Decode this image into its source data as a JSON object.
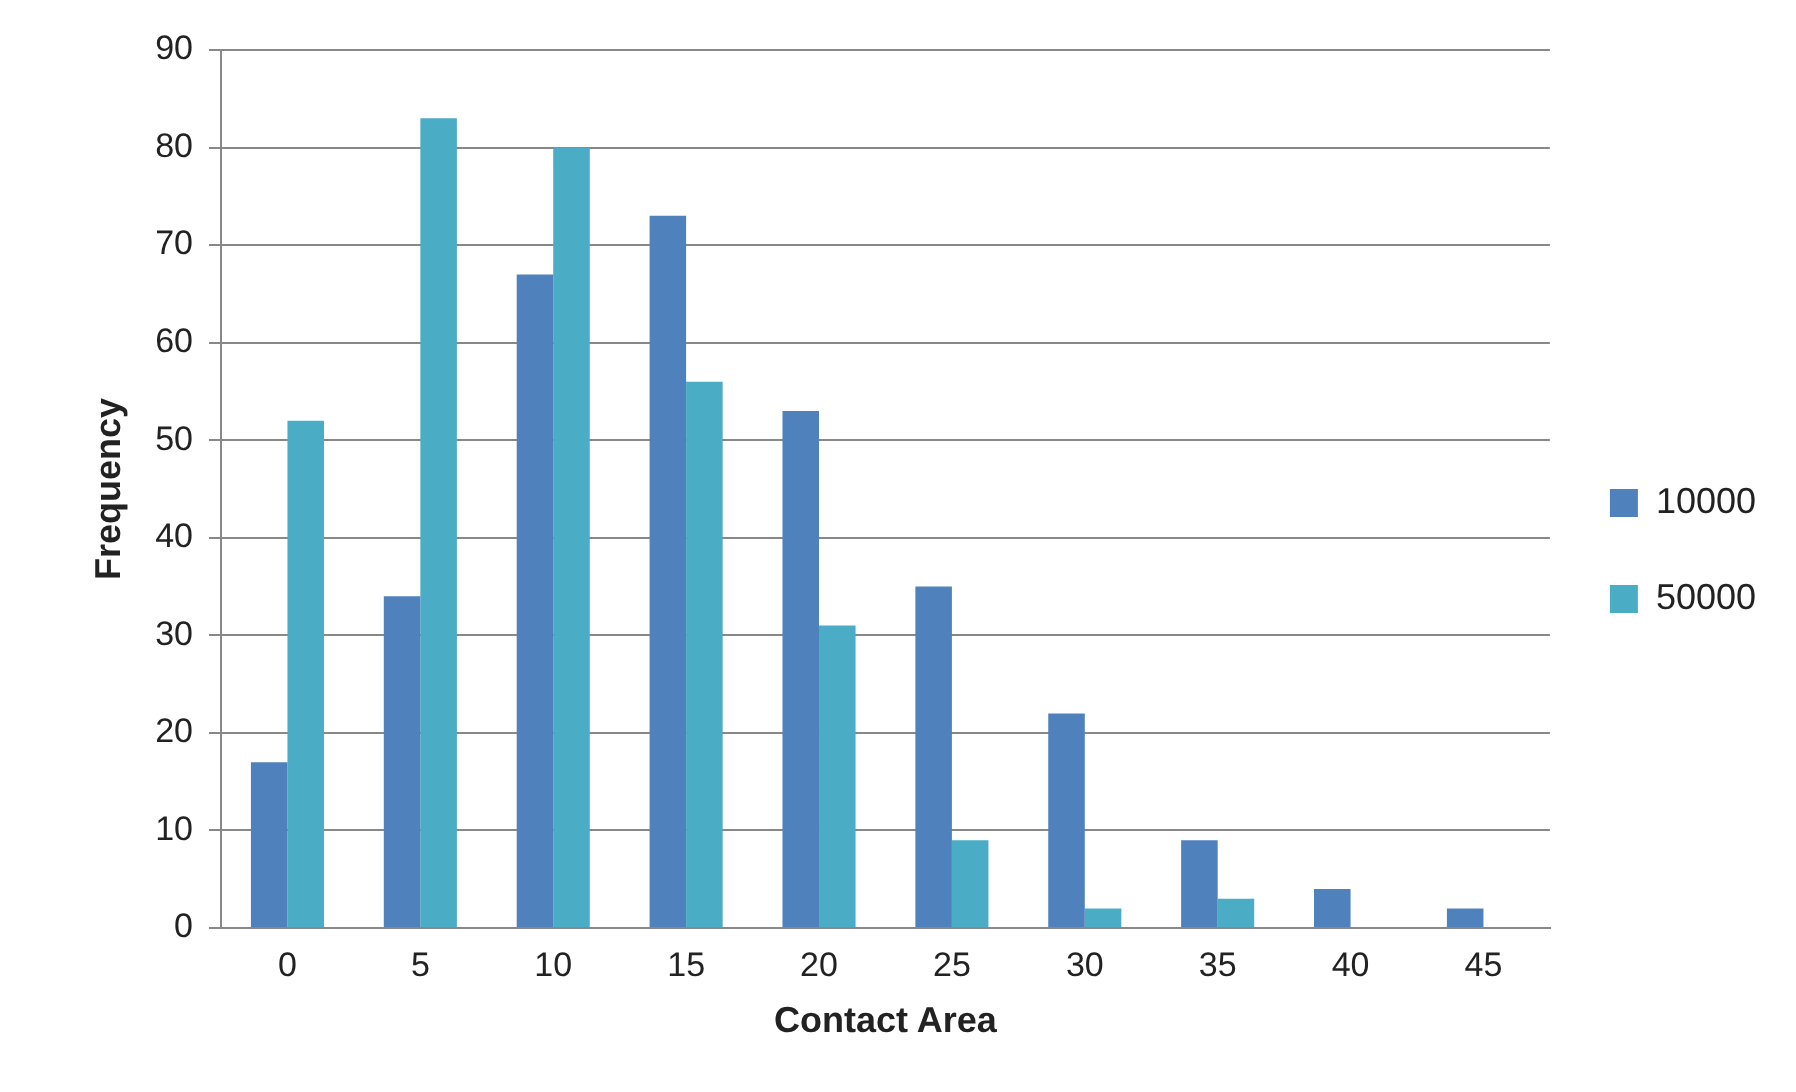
{
  "chart_data": {
    "type": "bar",
    "xlabel": "Contact Area",
    "ylabel": "Frequency",
    "categories": [
      "0",
      "5",
      "10",
      "15",
      "20",
      "25",
      "30",
      "35",
      "40",
      "45"
    ],
    "series": [
      {
        "name": "10000",
        "color": "#4f81bd",
        "values": [
          17,
          34,
          67,
          73,
          53,
          35,
          22,
          9,
          4,
          2
        ]
      },
      {
        "name": "50000",
        "color": "#4bacc6",
        "values": [
          52,
          83,
          80,
          56,
          31,
          9,
          2,
          3,
          0,
          0
        ]
      }
    ],
    "ylim": [
      0,
      90
    ],
    "yticks": [
      0,
      10,
      20,
      30,
      40,
      50,
      60,
      70,
      80,
      90
    ],
    "grid": "y",
    "legend": "right"
  }
}
